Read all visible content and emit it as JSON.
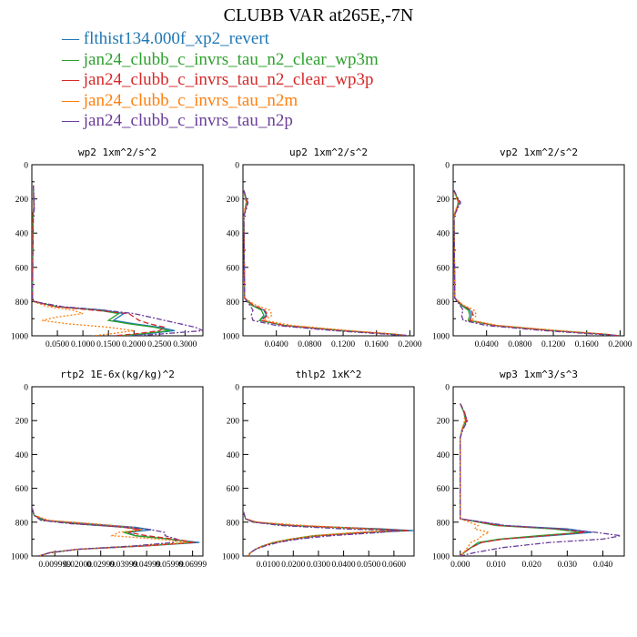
{
  "title": "CLUBB VAR at265E,-7N",
  "colors": {
    "blue": "#1f77b4",
    "green": "#2ca02c",
    "red": "#d62728",
    "orange": "#ff7f0e",
    "purple": "#6a3d9a"
  },
  "legend": [
    {
      "label": "flthist134.000f_xp2_revert",
      "color": "#1f77b4",
      "dash": "solid"
    },
    {
      "label": "jan24_clubb_c_invrs_tau_n2_clear_wp3m",
      "color": "#2ca02c",
      "dash": "solid"
    },
    {
      "label": "jan24_clubb_c_invrs_tau_n2_clear_wp3p",
      "color": "#d62728",
      "dash": "dashed"
    },
    {
      "label": "jan24_clubb_c_invrs_tau_n2m",
      "color": "#ff7f0e",
      "dash": "dotted"
    },
    {
      "label": "jan24_clubb_c_invrs_tau_n2p",
      "color": "#6a3d9a",
      "dash": "dashdot"
    }
  ],
  "chart_data": [
    {
      "type": "line",
      "title": "wp2  1xm^2/s^2",
      "xlim": [
        0,
        0.335
      ],
      "ylim": [
        1000,
        0
      ],
      "y_ticks": [
        "0",
        "200",
        "400",
        "600",
        "800",
        "1000"
      ],
      "x_ticks": [
        "0.0500",
        "0.1000",
        "0.1500",
        "0.2000",
        "0.2500",
        "0.3000"
      ],
      "x_tick_values": [
        0.05,
        0.1,
        0.15,
        0.2,
        0.25,
        0.3
      ],
      "y": [
        120,
        250,
        300,
        780,
        800,
        830,
        850,
        870,
        890,
        910,
        930,
        950,
        970,
        990,
        1000
      ],
      "series": [
        {
          "values": [
            0.003,
            0.004,
            0.002,
            0.001,
            0.004,
            0.05,
            0.14,
            0.18,
            0.17,
            0.16,
            0.2,
            0.25,
            0.28,
            0.22,
            0.18
          ]
        },
        {
          "values": [
            0.003,
            0.004,
            0.002,
            0.001,
            0.004,
            0.05,
            0.13,
            0.17,
            0.16,
            0.15,
            0.19,
            0.24,
            0.27,
            0.21,
            0.17
          ]
        },
        {
          "values": [
            0.003,
            0.004,
            0.002,
            0.001,
            0.004,
            0.045,
            0.12,
            0.19,
            0.2,
            0.21,
            0.23,
            0.26,
            0.25,
            0.2,
            0.16
          ]
        },
        {
          "values": [
            0.003,
            0.003,
            0.002,
            0.001,
            0.003,
            0.03,
            0.08,
            0.1,
            0.05,
            0.02,
            0.07,
            0.15,
            0.2,
            0.15,
            0.12
          ]
        },
        {
          "values": [
            0.003,
            0.005,
            0.003,
            0.001,
            0.005,
            0.06,
            0.14,
            0.2,
            0.23,
            0.26,
            0.29,
            0.32,
            0.335,
            0.25,
            0.2
          ]
        }
      ]
    },
    {
      "type": "line",
      "title": "up2  1xm^2/s^2",
      "xlim": [
        0,
        0.205
      ],
      "ylim": [
        1000,
        0
      ],
      "y_ticks": [
        "0",
        "200",
        "400",
        "600",
        "800",
        "1000"
      ],
      "x_ticks": [
        "0.0400",
        "0.0800",
        "0.1200",
        "0.1600",
        "0.2000"
      ],
      "x_tick_values": [
        0.04,
        0.08,
        0.12,
        0.16,
        0.2
      ],
      "y": [
        150,
        200,
        220,
        240,
        260,
        300,
        780,
        820,
        850,
        880,
        910,
        940,
        970,
        990,
        1000
      ],
      "series": [
        {
          "values": [
            0.001,
            0.004,
            0.005,
            0.004,
            0.003,
            0.001,
            0.002,
            0.01,
            0.025,
            0.028,
            0.02,
            0.05,
            0.12,
            0.18,
            0.2
          ]
        },
        {
          "values": [
            0.001,
            0.003,
            0.004,
            0.003,
            0.003,
            0.001,
            0.002,
            0.01,
            0.022,
            0.025,
            0.02,
            0.05,
            0.12,
            0.18,
            0.2
          ]
        },
        {
          "values": [
            0.001,
            0.004,
            0.005,
            0.004,
            0.003,
            0.001,
            0.002,
            0.012,
            0.026,
            0.03,
            0.022,
            0.05,
            0.12,
            0.18,
            0.2
          ]
        },
        {
          "values": [
            0.001,
            0.003,
            0.004,
            0.003,
            0.002,
            0.001,
            0.002,
            0.015,
            0.032,
            0.035,
            0.025,
            0.06,
            0.13,
            0.18,
            0.2
          ]
        },
        {
          "values": [
            0.001,
            0.004,
            0.006,
            0.005,
            0.004,
            0.001,
            0.002,
            0.008,
            0.012,
            0.01,
            0.012,
            0.04,
            0.11,
            0.17,
            0.2
          ]
        }
      ]
    },
    {
      "type": "line",
      "title": "vp2  1xm^2/s^2",
      "xlim": [
        0,
        0.205
      ],
      "ylim": [
        1000,
        0
      ],
      "y_ticks": [
        "0",
        "200",
        "400",
        "600",
        "800",
        "1000"
      ],
      "x_ticks": [
        "0.0400",
        "0.0800",
        "0.1200",
        "0.1600",
        "0.2000"
      ],
      "x_tick_values": [
        0.04,
        0.08,
        0.12,
        0.16,
        0.2
      ],
      "y": [
        150,
        200,
        220,
        240,
        260,
        300,
        780,
        820,
        850,
        880,
        910,
        940,
        970,
        990,
        1000
      ],
      "series": [
        {
          "values": [
            0.001,
            0.005,
            0.007,
            0.006,
            0.004,
            0.001,
            0.002,
            0.01,
            0.02,
            0.022,
            0.02,
            0.05,
            0.12,
            0.18,
            0.2
          ]
        },
        {
          "values": [
            0.001,
            0.005,
            0.006,
            0.005,
            0.004,
            0.001,
            0.002,
            0.009,
            0.018,
            0.02,
            0.018,
            0.05,
            0.12,
            0.18,
            0.2
          ]
        },
        {
          "values": [
            0.001,
            0.005,
            0.007,
            0.006,
            0.004,
            0.001,
            0.002,
            0.011,
            0.022,
            0.024,
            0.02,
            0.05,
            0.12,
            0.18,
            0.2
          ]
        },
        {
          "values": [
            0.001,
            0.004,
            0.006,
            0.005,
            0.003,
            0.001,
            0.002,
            0.012,
            0.025,
            0.028,
            0.022,
            0.055,
            0.13,
            0.18,
            0.2
          ]
        },
        {
          "values": [
            0.001,
            0.006,
            0.009,
            0.007,
            0.005,
            0.001,
            0.002,
            0.008,
            0.012,
            0.01,
            0.012,
            0.04,
            0.11,
            0.17,
            0.2
          ]
        }
      ]
    },
    {
      "type": "line",
      "title": "rtp2  1E-6x(kg/kg)^2",
      "xlim": [
        0,
        0.0745
      ],
      "ylim": [
        1000,
        0
      ],
      "y_ticks": [
        "0",
        "200",
        "400",
        "600",
        "800",
        "1000"
      ],
      "x_ticks": [
        "0.009999",
        "0.02000",
        "0.02999",
        "0.03999",
        "0.04999",
        "0.05999",
        "0.06999"
      ],
      "x_tick_values": [
        0.01,
        0.02,
        0.03,
        0.04,
        0.05,
        0.06,
        0.07
      ],
      "y": [
        720,
        760,
        790,
        810,
        830,
        845,
        860,
        880,
        900,
        920,
        940,
        960,
        980,
        1000
      ],
      "series": [
        {
          "values": [
            0.0002,
            0.001,
            0.006,
            0.025,
            0.045,
            0.052,
            0.042,
            0.045,
            0.06,
            0.073,
            0.05,
            0.02,
            0.008,
            0.003
          ]
        },
        {
          "values": [
            0.0002,
            0.001,
            0.005,
            0.02,
            0.04,
            0.048,
            0.04,
            0.045,
            0.06,
            0.07,
            0.048,
            0.02,
            0.008,
            0.003
          ]
        },
        {
          "values": [
            0.0002,
            0.001,
            0.006,
            0.022,
            0.04,
            0.047,
            0.042,
            0.05,
            0.062,
            0.071,
            0.05,
            0.02,
            0.008,
            0.003
          ]
        },
        {
          "values": [
            0.0002,
            0.001,
            0.008,
            0.028,
            0.044,
            0.048,
            0.038,
            0.035,
            0.055,
            0.068,
            0.046,
            0.02,
            0.008,
            0.003
          ]
        },
        {
          "values": [
            0.0002,
            0.001,
            0.004,
            0.018,
            0.042,
            0.052,
            0.058,
            0.058,
            0.063,
            0.062,
            0.045,
            0.02,
            0.008,
            0.003
          ]
        }
      ]
    },
    {
      "type": "line",
      "title": "thlp2  1xK^2",
      "xlim": [
        0,
        0.068
      ],
      "ylim": [
        1000,
        0
      ],
      "y_ticks": [
        "0",
        "200",
        "400",
        "600",
        "800",
        "1000"
      ],
      "x_ticks": [
        "0.0100",
        "0.0200",
        "0.0300",
        "0.0400",
        "0.0500",
        "0.0600"
      ],
      "x_tick_values": [
        0.01,
        0.02,
        0.03,
        0.04,
        0.05,
        0.06
      ],
      "y": [
        740,
        780,
        800,
        820,
        840,
        850,
        860,
        880,
        900,
        920,
        940,
        960,
        980,
        1000
      ],
      "series": [
        {
          "values": [
            0.0002,
            0.001,
            0.005,
            0.02,
            0.055,
            0.068,
            0.05,
            0.03,
            0.02,
            0.013,
            0.008,
            0.005,
            0.003,
            0.002
          ]
        },
        {
          "values": [
            0.0002,
            0.001,
            0.004,
            0.018,
            0.05,
            0.064,
            0.048,
            0.028,
            0.019,
            0.012,
            0.008,
            0.005,
            0.003,
            0.002
          ]
        },
        {
          "values": [
            0.0002,
            0.001,
            0.005,
            0.02,
            0.053,
            0.066,
            0.05,
            0.03,
            0.02,
            0.013,
            0.008,
            0.005,
            0.003,
            0.002
          ]
        },
        {
          "values": [
            0.0002,
            0.001,
            0.006,
            0.025,
            0.05,
            0.058,
            0.045,
            0.028,
            0.019,
            0.012,
            0.008,
            0.005,
            0.003,
            0.002
          ]
        },
        {
          "values": [
            0.0002,
            0.001,
            0.004,
            0.015,
            0.04,
            0.062,
            0.055,
            0.035,
            0.022,
            0.014,
            0.009,
            0.005,
            0.003,
            0.002
          ]
        }
      ]
    },
    {
      "type": "line",
      "title": "wp3  1xm^3/s^3",
      "xlim": [
        -0.002,
        0.046
      ],
      "ylim": [
        1000,
        0
      ],
      "y_ticks": [
        "0",
        "200",
        "400",
        "600",
        "800",
        "1000"
      ],
      "x_ticks": [
        "0.000",
        "0.010",
        "0.020",
        "0.030",
        "0.040"
      ],
      "x_tick_values": [
        0,
        0.01,
        0.02,
        0.03,
        0.04
      ],
      "y": [
        100,
        150,
        200,
        250,
        300,
        780,
        820,
        840,
        860,
        880,
        900,
        920,
        950,
        980,
        1000
      ],
      "series": [
        {
          "values": [
            0,
            0.001,
            0.0015,
            0.0005,
            0,
            0,
            0.012,
            0.03,
            0.037,
            0.025,
            0.012,
            0.006,
            0.003,
            0.001,
            0
          ]
        },
        {
          "values": [
            0,
            0.001,
            0.0015,
            0.0005,
            0,
            0,
            0.01,
            0.026,
            0.034,
            0.022,
            0.011,
            0.005,
            0.003,
            0.001,
            0
          ]
        },
        {
          "values": [
            0,
            0.0012,
            0.0018,
            0.0006,
            0,
            0,
            0.011,
            0.028,
            0.035,
            0.024,
            0.012,
            0.006,
            0.003,
            0.001,
            0
          ]
        },
        {
          "values": [
            0,
            0.001,
            0.0012,
            0.0005,
            0,
            0,
            0.005,
            0.004,
            0.008,
            0.006,
            0.005,
            0.003,
            0.002,
            0.001,
            0
          ]
        },
        {
          "values": [
            0,
            0.001,
            0.002,
            0.0008,
            0,
            0,
            0.013,
            0.028,
            0.038,
            0.045,
            0.04,
            0.025,
            0.012,
            0.004,
            0
          ]
        }
      ]
    }
  ]
}
